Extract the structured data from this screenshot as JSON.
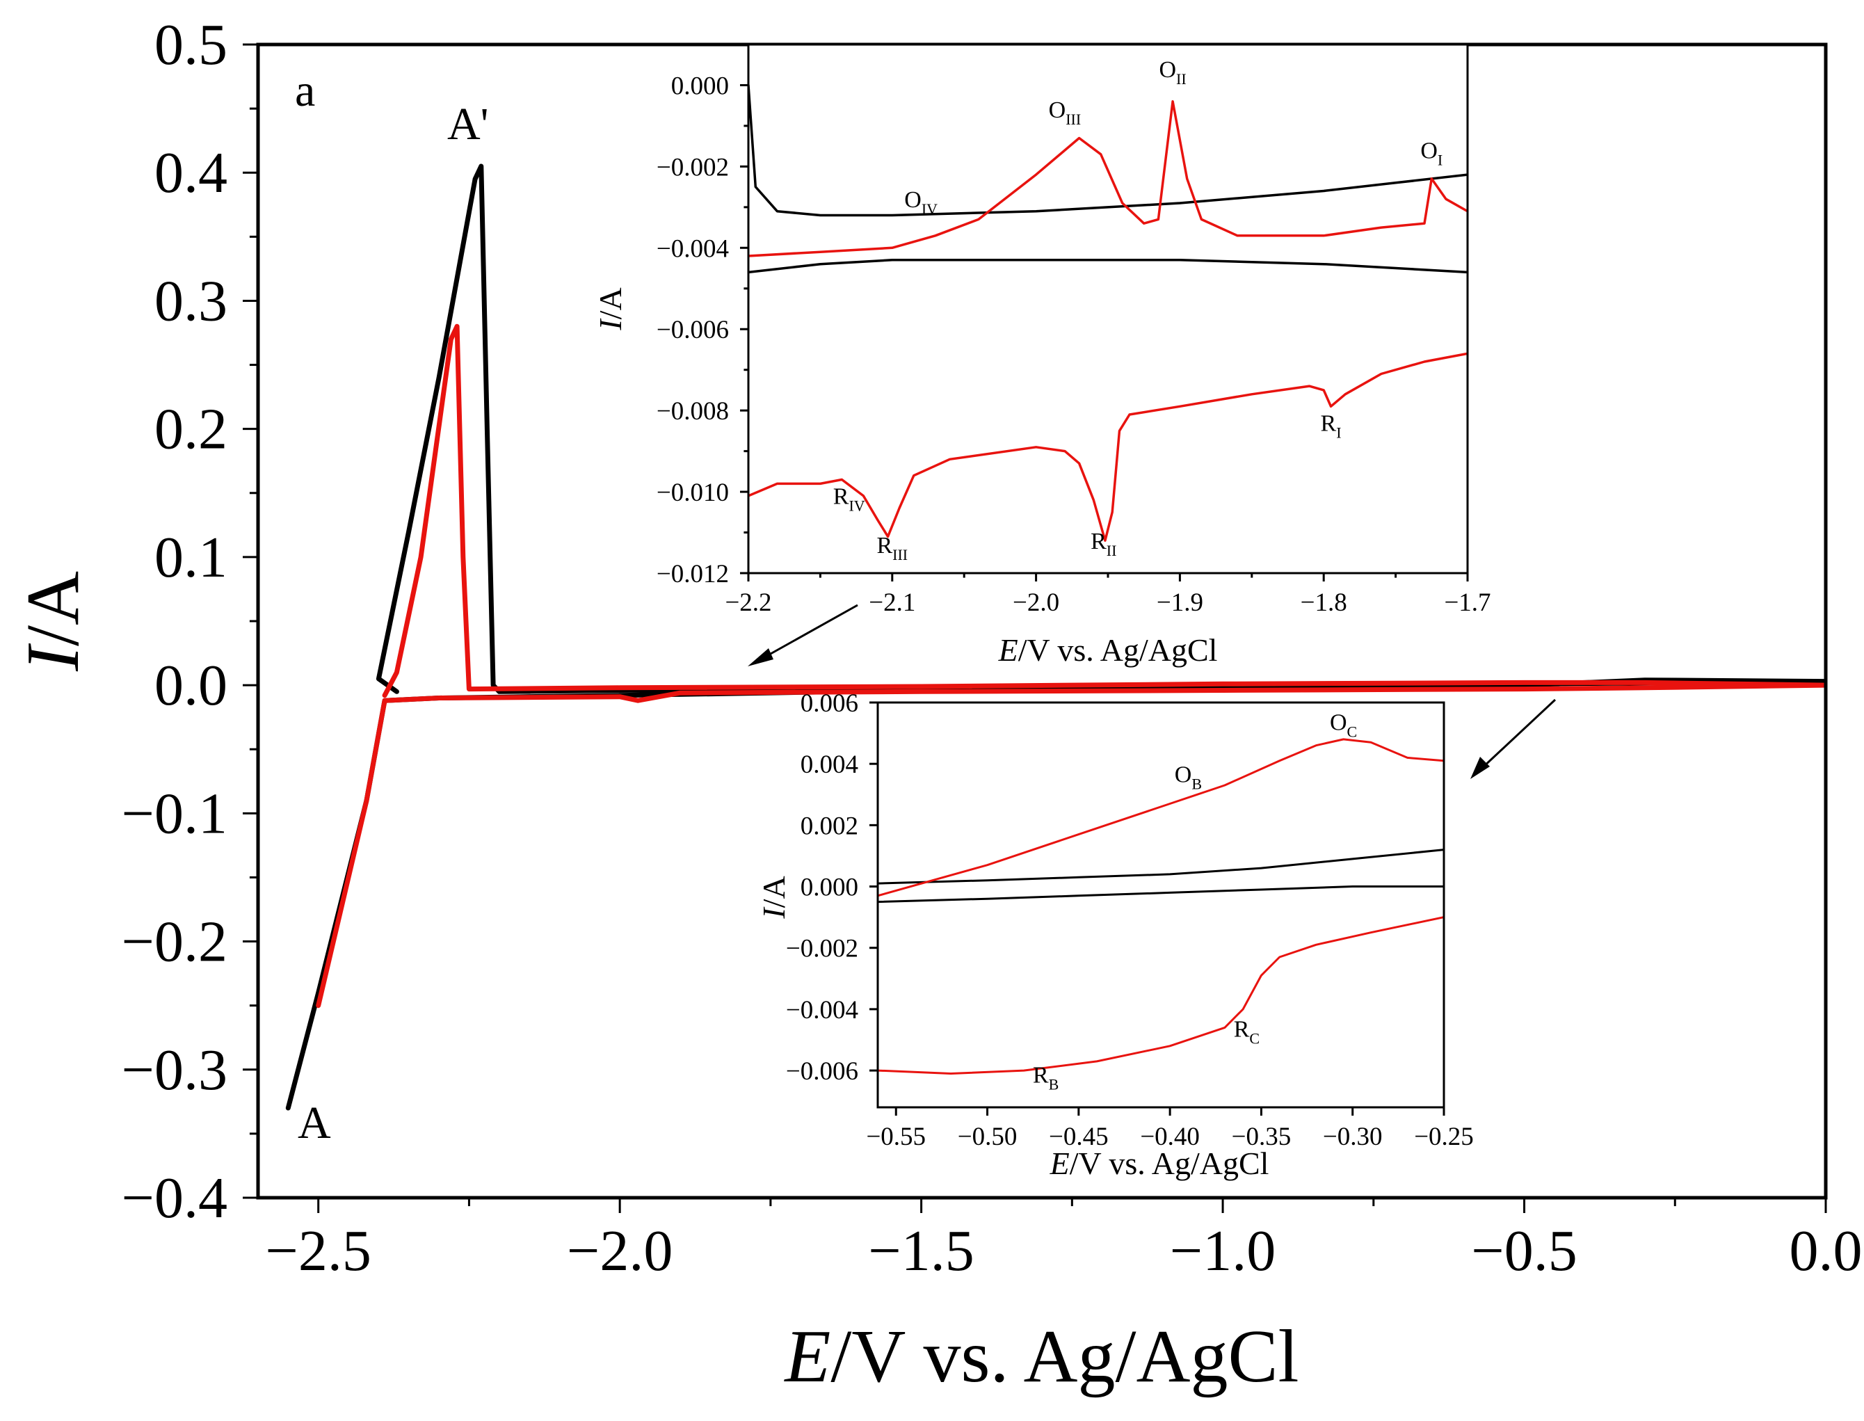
{
  "chart_data": [
    {
      "id": "main",
      "type": "line",
      "panel_label": "a",
      "xlabel_italic": "E",
      "xlabel_rest": "/V vs. Ag/AgCl",
      "ylabel_italic": "I",
      "ylabel_rest": "/A",
      "xlim": [
        -2.6,
        0.0
      ],
      "ylim": [
        -0.4,
        0.5
      ],
      "xticks": [
        -2.5,
        -2.0,
        -1.5,
        -1.0,
        -0.5,
        0.0
      ],
      "xtick_labels": [
        "−2.5",
        "−2.0",
        "−1.5",
        "−1.0",
        "−0.5",
        "0.0"
      ],
      "yticks": [
        -0.4,
        -0.3,
        -0.2,
        -0.1,
        0.0,
        0.1,
        0.2,
        0.3,
        0.4,
        0.5
      ],
      "ytick_labels": [
        "−0.4",
        "−0.3",
        "−0.2",
        "−0.1",
        "0.0",
        "0.1",
        "0.2",
        "0.3",
        "0.4",
        "0.5"
      ],
      "annotations": [
        {
          "text": "A'",
          "x": -2.23,
          "y": 0.43
        },
        {
          "text": "A",
          "x": -2.52,
          "y": -0.35
        }
      ],
      "series": [
        {
          "name": "black",
          "color": "#000000",
          "points": [
            [
              -2.55,
              -0.33
            ],
            [
              -2.5,
              -0.24
            ],
            [
              -2.42,
              -0.09
            ],
            [
              -2.39,
              -0.012
            ],
            [
              -2.3,
              -0.01
            ],
            [
              -2.0,
              -0.008
            ],
            [
              -1.5,
              -0.004
            ],
            [
              -1.0,
              -0.002
            ],
            [
              -0.5,
              0.0
            ],
            [
              -0.3,
              0.004
            ],
            [
              0.0,
              0.003
            ],
            [
              -0.5,
              0.001
            ],
            [
              -1.0,
              0.0
            ],
            [
              -1.5,
              -0.002
            ],
            [
              -2.0,
              -0.004
            ],
            [
              -2.2,
              -0.005
            ],
            [
              -2.21,
              0.0
            ],
            [
              -2.22,
              0.2
            ],
            [
              -2.23,
              0.405
            ],
            [
              -2.24,
              0.395
            ],
            [
              -2.3,
              0.24
            ],
            [
              -2.35,
              0.12
            ],
            [
              -2.4,
              0.005
            ],
            [
              -2.37,
              -0.005
            ]
          ]
        },
        {
          "name": "red",
          "color": "#e8130f",
          "points": [
            [
              -2.5,
              -0.25
            ],
            [
              -2.42,
              -0.09
            ],
            [
              -2.39,
              -0.012
            ],
            [
              -2.3,
              -0.01
            ],
            [
              -2.0,
              -0.009
            ],
            [
              -1.97,
              -0.012
            ],
            [
              -1.9,
              -0.006
            ],
            [
              -1.5,
              -0.005
            ],
            [
              -1.0,
              -0.004
            ],
            [
              -0.5,
              -0.003
            ],
            [
              -0.3,
              -0.002
            ],
            [
              0.0,
              0.0
            ],
            [
              -0.3,
              0.002
            ],
            [
              -0.5,
              0.002
            ],
            [
              -1.0,
              0.001
            ],
            [
              -1.5,
              -0.001
            ],
            [
              -2.0,
              -0.002
            ],
            [
              -2.25,
              -0.003
            ],
            [
              -2.26,
              0.1
            ],
            [
              -2.27,
              0.28
            ],
            [
              -2.28,
              0.27
            ],
            [
              -2.33,
              0.1
            ],
            [
              -2.37,
              0.01
            ],
            [
              -2.39,
              -0.008
            ]
          ]
        }
      ]
    },
    {
      "id": "inset-top",
      "type": "line",
      "xlabel_italic": "E",
      "xlabel_rest": "/V vs. Ag/AgCl",
      "ylabel_italic": "I",
      "ylabel_rest": "/A",
      "xlim": [
        -2.2,
        -1.7
      ],
      "ylim": [
        -0.012,
        0.001
      ],
      "xticks": [
        -2.2,
        -2.1,
        -2.0,
        -1.9,
        -1.8,
        -1.7
      ],
      "xtick_labels": [
        "−2.2",
        "−2.1",
        "−2.0",
        "−1.9",
        "−1.8",
        "−1.7"
      ],
      "yticks": [
        0.0,
        -0.002,
        -0.004,
        -0.006,
        -0.008,
        -0.01,
        -0.012
      ],
      "ytick_labels": [
        "0.000",
        "−0.002",
        "−0.004",
        "−0.006",
        "−0.008",
        "−0.010",
        "−0.012"
      ],
      "annotations": [
        {
          "text": "O",
          "sub": "II",
          "x": -1.905,
          "y": 0.0002
        },
        {
          "text": "O",
          "sub": "III",
          "x": -1.98,
          "y": -0.0008
        },
        {
          "text": "O",
          "sub": "I",
          "x": -1.725,
          "y": -0.0018
        },
        {
          "text": "O",
          "sub": "IV",
          "x": -2.08,
          "y": -0.003
        },
        {
          "text": "R",
          "sub": "I",
          "x": -1.795,
          "y": -0.0085
        },
        {
          "text": "R",
          "sub": "IV",
          "x": -2.13,
          "y": -0.0103
        },
        {
          "text": "R",
          "sub": "III",
          "x": -2.1,
          "y": -0.0115
        },
        {
          "text": "R",
          "sub": "II",
          "x": -1.953,
          "y": -0.0114
        }
      ],
      "series": [
        {
          "name": "black-upper",
          "color": "#000000",
          "points": [
            [
              -2.2,
              0.0
            ],
            [
              -2.195,
              -0.0025
            ],
            [
              -2.18,
              -0.0031
            ],
            [
              -2.15,
              -0.0032
            ],
            [
              -2.1,
              -0.0032
            ],
            [
              -2.0,
              -0.0031
            ],
            [
              -1.9,
              -0.0029
            ],
            [
              -1.8,
              -0.0026
            ],
            [
              -1.75,
              -0.0024
            ],
            [
              -1.7,
              -0.0022
            ]
          ]
        },
        {
          "name": "black-lower",
          "color": "#000000",
          "points": [
            [
              -2.2,
              -0.0046
            ],
            [
              -2.15,
              -0.0044
            ],
            [
              -2.1,
              -0.0043
            ],
            [
              -2.0,
              -0.0043
            ],
            [
              -1.9,
              -0.0043
            ],
            [
              -1.8,
              -0.0044
            ],
            [
              -1.75,
              -0.0045
            ],
            [
              -1.7,
              -0.0046
            ]
          ]
        },
        {
          "name": "red-upper",
          "color": "#e8130f",
          "points": [
            [
              -2.2,
              -0.0042
            ],
            [
              -2.15,
              -0.0041
            ],
            [
              -2.1,
              -0.004
            ],
            [
              -2.07,
              -0.0037
            ],
            [
              -2.04,
              -0.0033
            ],
            [
              -2.0,
              -0.0022
            ],
            [
              -1.97,
              -0.0013
            ],
            [
              -1.955,
              -0.0017
            ],
            [
              -1.94,
              -0.0029
            ],
            [
              -1.925,
              -0.0034
            ],
            [
              -1.915,
              -0.0033
            ],
            [
              -1.905,
              -0.0004
            ],
            [
              -1.895,
              -0.0023
            ],
            [
              -1.885,
              -0.0033
            ],
            [
              -1.86,
              -0.0037
            ],
            [
              -1.8,
              -0.0037
            ],
            [
              -1.76,
              -0.0035
            ],
            [
              -1.73,
              -0.0034
            ],
            [
              -1.725,
              -0.0023
            ],
            [
              -1.715,
              -0.0028
            ],
            [
              -1.7,
              -0.0031
            ]
          ]
        },
        {
          "name": "red-lower",
          "color": "#e8130f",
          "points": [
            [
              -2.2,
              -0.0101
            ],
            [
              -2.18,
              -0.0098
            ],
            [
              -2.15,
              -0.0098
            ],
            [
              -2.135,
              -0.0097
            ],
            [
              -2.12,
              -0.0101
            ],
            [
              -2.11,
              -0.0107
            ],
            [
              -2.103,
              -0.0111
            ],
            [
              -2.095,
              -0.0104
            ],
            [
              -2.085,
              -0.0096
            ],
            [
              -2.06,
              -0.0092
            ],
            [
              -2.0,
              -0.0089
            ],
            [
              -1.98,
              -0.009
            ],
            [
              -1.97,
              -0.0093
            ],
            [
              -1.96,
              -0.0102
            ],
            [
              -1.952,
              -0.0112
            ],
            [
              -1.947,
              -0.0105
            ],
            [
              -1.942,
              -0.0085
            ],
            [
              -1.935,
              -0.0081
            ],
            [
              -1.9,
              -0.0079
            ],
            [
              -1.85,
              -0.0076
            ],
            [
              -1.81,
              -0.0074
            ],
            [
              -1.8,
              -0.0075
            ],
            [
              -1.795,
              -0.0079
            ],
            [
              -1.785,
              -0.0076
            ],
            [
              -1.76,
              -0.0071
            ],
            [
              -1.73,
              -0.0068
            ],
            [
              -1.7,
              -0.0066
            ]
          ]
        }
      ]
    },
    {
      "id": "inset-bottom",
      "type": "line",
      "xlabel_italic": "E",
      "xlabel_rest": "/V vs. Ag/AgCl",
      "ylabel_italic": "I",
      "ylabel_rest": "/A",
      "xlim": [
        -0.56,
        -0.25
      ],
      "ylim": [
        -0.0072,
        0.006
      ],
      "xticks": [
        -0.55,
        -0.5,
        -0.45,
        -0.4,
        -0.35,
        -0.3,
        -0.25
      ],
      "xtick_labels": [
        "−0.55",
        "−0.50",
        "−0.45",
        "−0.40",
        "−0.35",
        "−0.30",
        "−0.25"
      ],
      "yticks": [
        0.006,
        0.004,
        0.002,
        0.0,
        -0.002,
        -0.004,
        -0.006
      ],
      "ytick_labels": [
        "0.006",
        "0.004",
        "0.002",
        "0.000",
        "−0.002",
        "−0.004",
        "−0.006"
      ],
      "annotations": [
        {
          "text": "O",
          "sub": "C",
          "x": -0.305,
          "y": 0.0051
        },
        {
          "text": "O",
          "sub": "B",
          "x": -0.39,
          "y": 0.0034
        },
        {
          "text": "R",
          "sub": "C",
          "x": -0.358,
          "y": -0.0049
        },
        {
          "text": "R",
          "sub": "B",
          "x": -0.468,
          "y": -0.0064
        }
      ],
      "series": [
        {
          "name": "black-upper",
          "color": "#000000",
          "points": [
            [
              -0.56,
              0.0001
            ],
            [
              -0.5,
              0.0002
            ],
            [
              -0.45,
              0.0003
            ],
            [
              -0.4,
              0.0004
            ],
            [
              -0.35,
              0.0006
            ],
            [
              -0.3,
              0.0009
            ],
            [
              -0.25,
              0.0012
            ]
          ]
        },
        {
          "name": "black-lower",
          "color": "#000000",
          "points": [
            [
              -0.56,
              -0.0005
            ],
            [
              -0.5,
              -0.0004
            ],
            [
              -0.45,
              -0.0003
            ],
            [
              -0.4,
              -0.0002
            ],
            [
              -0.35,
              -0.0001
            ],
            [
              -0.3,
              0.0
            ],
            [
              -0.25,
              0.0
            ]
          ]
        },
        {
          "name": "red-upper",
          "color": "#e8130f",
          "points": [
            [
              -0.56,
              -0.0003
            ],
            [
              -0.53,
              0.0002
            ],
            [
              -0.5,
              0.0007
            ],
            [
              -0.45,
              0.0017
            ],
            [
              -0.4,
              0.0027
            ],
            [
              -0.37,
              0.0033
            ],
            [
              -0.34,
              0.0041
            ],
            [
              -0.32,
              0.0046
            ],
            [
              -0.305,
              0.0048
            ],
            [
              -0.29,
              0.0047
            ],
            [
              -0.27,
              0.0042
            ],
            [
              -0.25,
              0.0041
            ]
          ]
        },
        {
          "name": "red-lower",
          "color": "#e8130f",
          "points": [
            [
              -0.56,
              -0.006
            ],
            [
              -0.52,
              -0.0061
            ],
            [
              -0.48,
              -0.006
            ],
            [
              -0.44,
              -0.0057
            ],
            [
              -0.4,
              -0.0052
            ],
            [
              -0.37,
              -0.0046
            ],
            [
              -0.36,
              -0.004
            ],
            [
              -0.35,
              -0.0029
            ],
            [
              -0.34,
              -0.0023
            ],
            [
              -0.32,
              -0.0019
            ],
            [
              -0.29,
              -0.0015
            ],
            [
              -0.25,
              -0.001
            ]
          ]
        }
      ]
    }
  ]
}
